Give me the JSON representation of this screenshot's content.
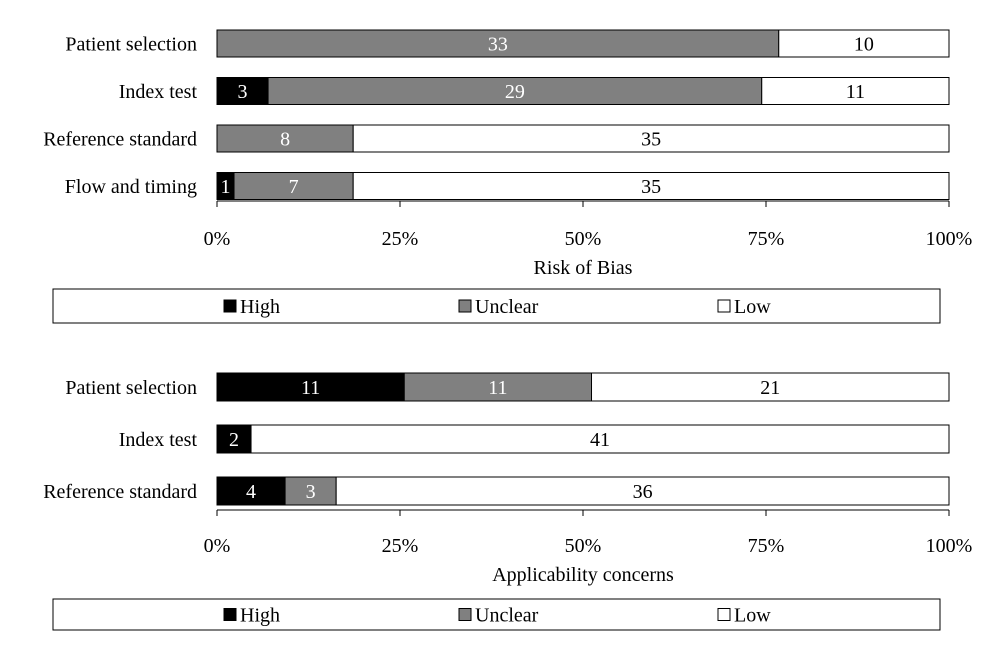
{
  "colors": {
    "high": "#000000",
    "unclear": "#808080",
    "low": "#ffffff",
    "stroke": "#000000"
  },
  "chart_data": [
    {
      "type": "bar",
      "orientation": "horizontal",
      "stacked": true,
      "percent": true,
      "title": "",
      "xlabel": "Risk of Bias",
      "ylabel": "",
      "xlim": [
        0,
        100
      ],
      "tick_labels": [
        "0%",
        "25%",
        "50%",
        "75%",
        "100%"
      ],
      "legend_position": "bottom",
      "categories": [
        "Patient selection",
        "Index test",
        "Reference standard",
        "Flow and timing"
      ],
      "series": [
        {
          "name": "High",
          "values": [
            0,
            3,
            0,
            1
          ]
        },
        {
          "name": "Unclear",
          "values": [
            33,
            29,
            8,
            7
          ]
        },
        {
          "name": "Low",
          "values": [
            10,
            11,
            35,
            35
          ]
        }
      ]
    },
    {
      "type": "bar",
      "orientation": "horizontal",
      "stacked": true,
      "percent": true,
      "title": "",
      "xlabel": "Applicability concerns",
      "ylabel": "",
      "xlim": [
        0,
        100
      ],
      "tick_labels": [
        "0%",
        "25%",
        "50%",
        "75%",
        "100%"
      ],
      "legend_position": "bottom",
      "categories": [
        "Patient selection",
        "Index test",
        "Reference standard"
      ],
      "series": [
        {
          "name": "High",
          "values": [
            11,
            2,
            4
          ]
        },
        {
          "name": "Unclear",
          "values": [
            11,
            0,
            3
          ]
        },
        {
          "name": "Low",
          "values": [
            21,
            41,
            36
          ]
        }
      ]
    }
  ]
}
